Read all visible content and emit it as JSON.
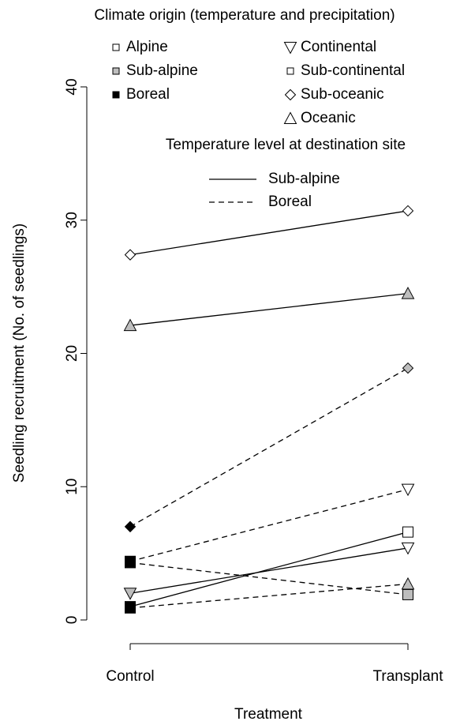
{
  "chart_data": {
    "type": "line",
    "xlabel": "Treatment",
    "ylabel": "Seedling recruitment (No. of seedlings)",
    "categories": [
      "Control",
      "Transplant"
    ],
    "ylim": [
      0,
      40
    ],
    "yticks": [
      0,
      10,
      20,
      30,
      40
    ],
    "series": [
      {
        "values": [
          27.4,
          30.7
        ],
        "color": "#000000",
        "linestyle": "solid",
        "marker": "diamond",
        "marker_fills": [
          "#ffffff",
          "#ffffff"
        ]
      },
      {
        "values": [
          22.1,
          24.5
        ],
        "color": "#000000",
        "linestyle": "solid",
        "marker": "triangle-up",
        "marker_fills": [
          "#bebebe",
          "#bebebe"
        ]
      },
      {
        "values": [
          7.0,
          18.9
        ],
        "color": "#000000",
        "linestyle": "dashed",
        "marker": "diamond",
        "marker_fills": [
          "#000000",
          "#bebebe"
        ]
      },
      {
        "values": [
          4.4,
          9.8
        ],
        "color": "#000000",
        "linestyle": "dashed",
        "markers": [
          "square",
          "triangle-down"
        ],
        "marker_fills": [
          "#000000",
          "#ffffff"
        ]
      },
      {
        "values": [
          4.3,
          1.9
        ],
        "color": "#000000",
        "linestyle": "dashed",
        "marker": "square",
        "marker_fills": [
          "#000000",
          "#bebebe"
        ]
      },
      {
        "values": [
          0.9,
          2.7
        ],
        "color": "#000000",
        "linestyle": "dashed",
        "markers": [
          "square",
          "triangle-up"
        ],
        "marker_fills": [
          "#000000",
          "#bebebe"
        ]
      },
      {
        "values": [
          2.0,
          5.4
        ],
        "color": "#000000",
        "linestyle": "solid",
        "marker": "triangle-down",
        "marker_fills": [
          "#bebebe",
          "#ffffff"
        ]
      },
      {
        "values": [
          1.0,
          6.6
        ],
        "color": "#000000",
        "linestyle": "solid",
        "marker": "square",
        "marker_fills": [
          "#000000",
          "#ffffff"
        ]
      }
    ],
    "legend": {
      "title": "Climate origin (temperature and precipitation)",
      "entries": [
        {
          "label": "Alpine",
          "marker": "square",
          "fill": "#ffffff"
        },
        {
          "label": "Sub-alpine",
          "marker": "square",
          "fill": "#bebebe"
        },
        {
          "label": "Boreal",
          "marker": "square",
          "fill": "#000000"
        },
        {
          "label": "Continental",
          "marker": "triangle-down",
          "fill": "#ffffff"
        },
        {
          "label": "Sub-continental",
          "marker": "square",
          "fill": "#ffffff"
        },
        {
          "label": "Sub-oceanic",
          "marker": "diamond",
          "fill": "#ffffff"
        },
        {
          "label": "Oceanic",
          "marker": "triangle-up",
          "fill": "#ffffff"
        }
      ]
    },
    "line_legend": {
      "title": "Temperature level at destination site",
      "entries": [
        {
          "label": "Sub-alpine",
          "linestyle": "solid"
        },
        {
          "label": "Boreal",
          "linestyle": "dashed"
        }
      ]
    }
  }
}
